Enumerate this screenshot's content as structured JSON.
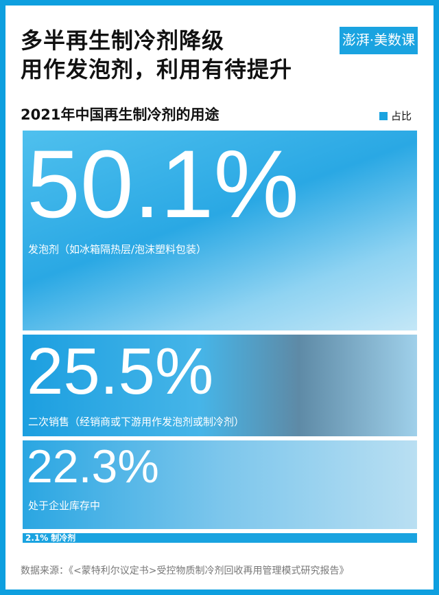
{
  "title_line1": "多半再生制冷剂降级",
  "title_line2": "用作发泡剂，利用有待提升",
  "logo_text": "澎湃·美数课",
  "subtitle": "2021年中国再生制冷剂的用途",
  "legend_label": "占比",
  "accent_color": "#1aa3e0",
  "source": "数据来源：《<蒙特利尔议定书>受控物质制冷剂回收再用管理模式研究报告》",
  "chart_data": {
    "type": "bar",
    "orientation": "stacked-vertical",
    "title": "2021年中国再生制冷剂的用途",
    "legend": [
      "占比"
    ],
    "categories": [
      "发泡剂（如冰箱隔热层/泡沫塑料包装）",
      "二次销售（经销商或下游用作发泡剂或制冷剂）",
      "处于企业库存中",
      "制冷剂"
    ],
    "values": [
      50.1,
      25.5,
      22.3,
      2.1
    ],
    "value_labels": [
      "50.1%",
      "25.5%",
      "22.3%",
      "2.1%"
    ]
  }
}
